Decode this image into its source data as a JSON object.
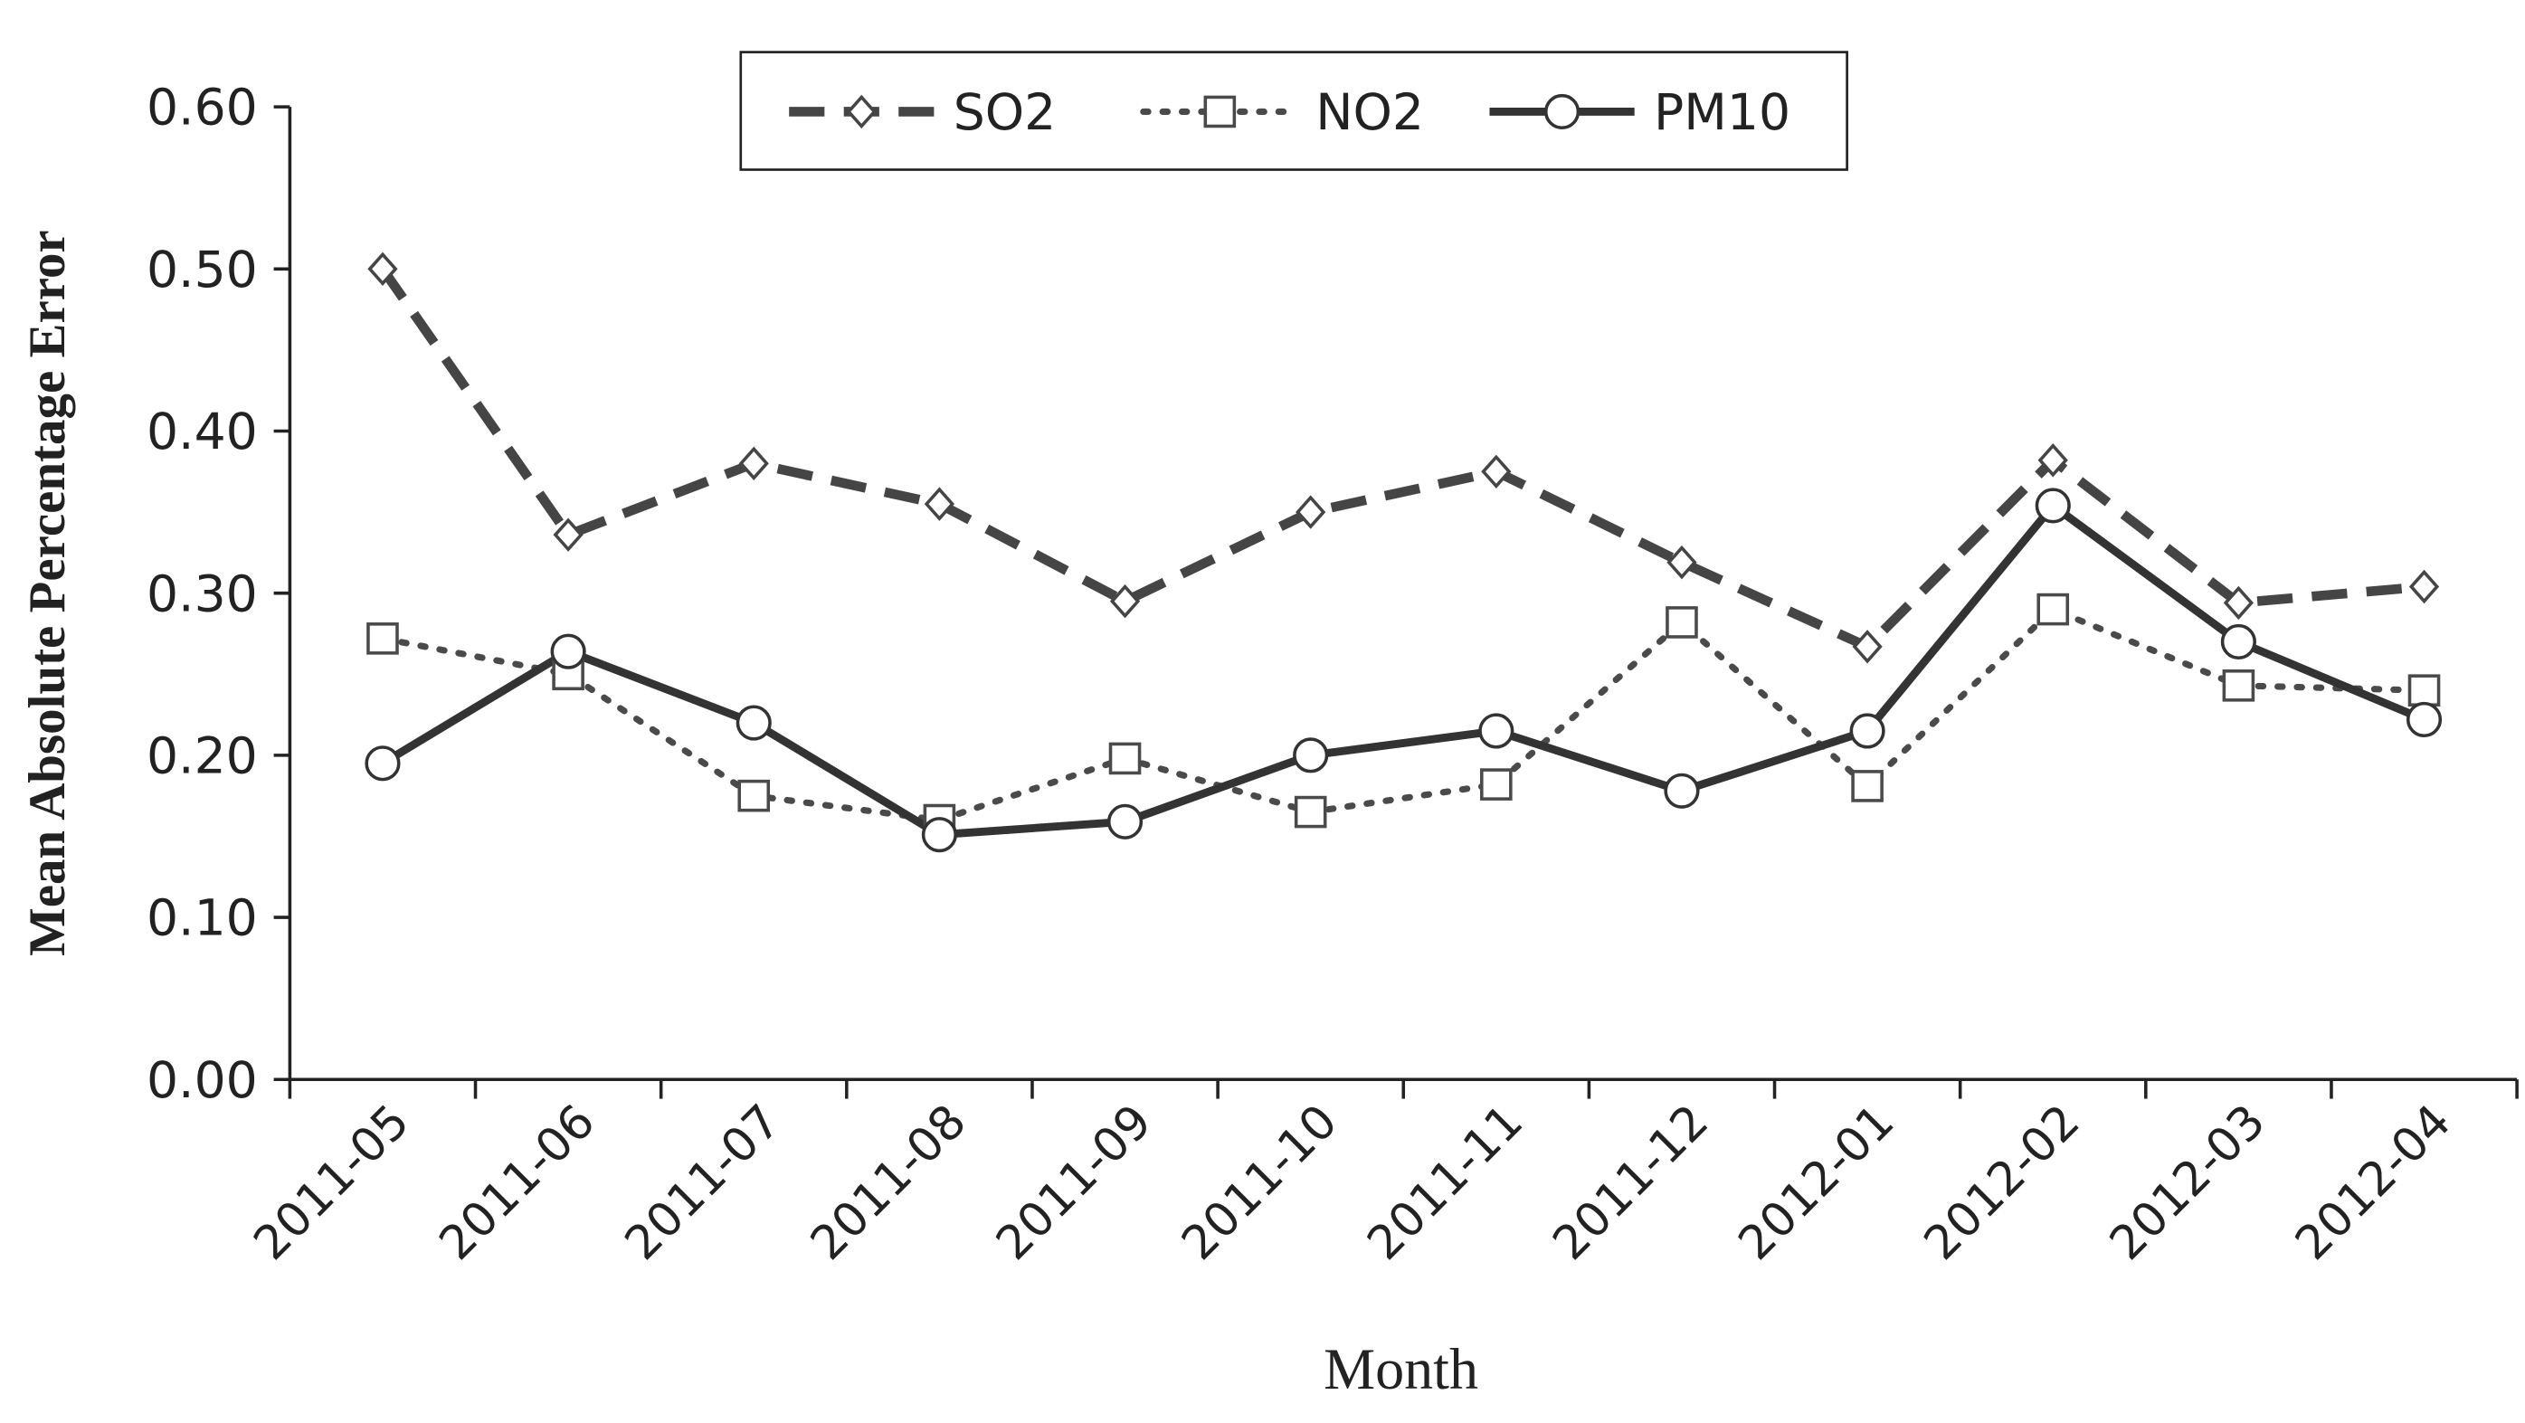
{
  "chart_data": {
    "type": "line",
    "x_label": "Month",
    "y_label": "Mean Absolute Percentage Error",
    "categories": [
      "2011-05",
      "2011-06",
      "2011-07",
      "2011-08",
      "2011-09",
      "2011-10",
      "2011-11",
      "2011-12",
      "2012-01",
      "2012-02",
      "2012-03",
      "2012-04"
    ],
    "ylim": [
      0,
      0.6
    ],
    "yticks": [
      {
        "value": 0,
        "label": "0.00"
      },
      {
        "value": 0.1,
        "label": "0.10"
      },
      {
        "value": 0.2,
        "label": "0.20"
      },
      {
        "value": 0.3,
        "label": "0.30"
      },
      {
        "value": 0.4,
        "label": "0.40"
      },
      {
        "value": 0.5,
        "label": "0.50"
      },
      {
        "value": 0.6,
        "label": "0.60"
      }
    ],
    "grid": false,
    "legend": "top",
    "series": [
      {
        "name": "SO2",
        "color": "#454545",
        "line_style": "dashed",
        "marker": "diamond",
        "values": [
          0.5,
          0.336,
          0.38,
          0.355,
          0.295,
          0.35,
          0.375,
          0.319,
          0.267,
          0.382,
          0.294,
          0.304
        ]
      },
      {
        "name": "NO2",
        "color": "#4a4a4a",
        "line_style": "dotted",
        "marker": "square",
        "values": [
          0.272,
          0.25,
          0.175,
          0.16,
          0.198,
          0.165,
          0.182,
          0.282,
          0.181,
          0.29,
          0.243,
          0.24
        ]
      },
      {
        "name": "PM10",
        "color": "#333333",
        "line_style": "solid",
        "marker": "circle",
        "values": [
          0.195,
          0.264,
          0.22,
          0.151,
          0.159,
          0.2,
          0.215,
          0.178,
          0.215,
          0.354,
          0.27,
          0.222
        ]
      }
    ]
  }
}
